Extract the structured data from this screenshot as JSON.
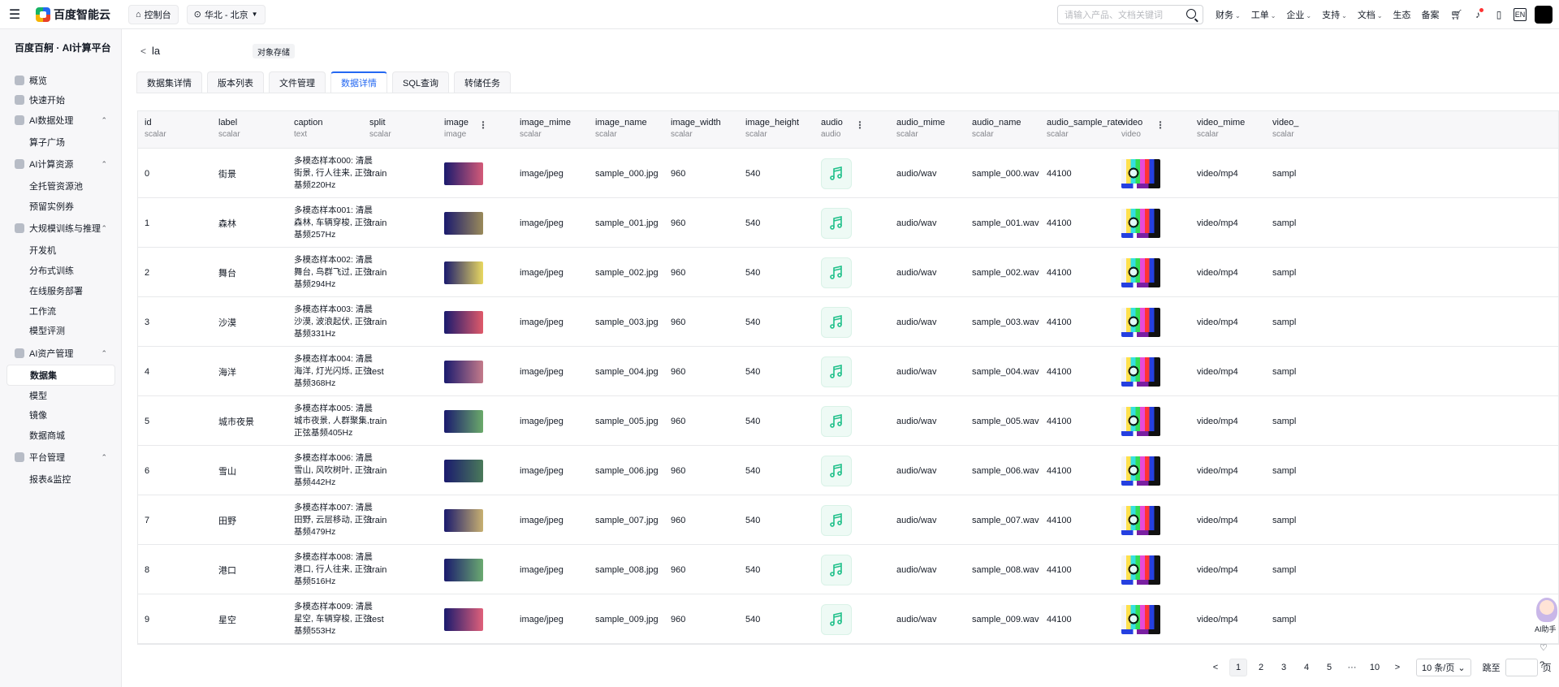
{
  "topbar": {
    "brand": "百度智能云",
    "console": "控制台",
    "region": "华北 - 北京",
    "search_placeholder": "请输入产品、文档关键词",
    "nav": [
      {
        "label": "财务",
        "caret": true
      },
      {
        "label": "工单",
        "caret": true
      },
      {
        "label": "企业",
        "caret": true
      },
      {
        "label": "支持",
        "caret": true
      },
      {
        "label": "文档",
        "caret": true
      },
      {
        "label": "生态",
        "caret": false
      },
      {
        "label": "备案",
        "caret": false
      }
    ],
    "lang": "EN"
  },
  "sidebar": {
    "title": "百度百舸 · AI计算平台",
    "items": [
      {
        "label": "概览",
        "type": "top"
      },
      {
        "label": "快速开始",
        "type": "top"
      },
      {
        "label": "AI数据处理",
        "type": "group"
      },
      {
        "label": "算子广场",
        "type": "sub"
      },
      {
        "label": "AI计算资源",
        "type": "group"
      },
      {
        "label": "全托管资源池",
        "type": "sub"
      },
      {
        "label": "预留实例券",
        "type": "sub"
      },
      {
        "label": "大规模训练与推理",
        "type": "group"
      },
      {
        "label": "开发机",
        "type": "sub"
      },
      {
        "label": "分布式训练",
        "type": "sub"
      },
      {
        "label": "在线服务部署",
        "type": "sub"
      },
      {
        "label": "工作流",
        "type": "sub"
      },
      {
        "label": "模型评测",
        "type": "sub"
      },
      {
        "label": "AI资产管理",
        "type": "group"
      },
      {
        "label": "数据集",
        "type": "sub",
        "active": true
      },
      {
        "label": "模型",
        "type": "sub"
      },
      {
        "label": "镜像",
        "type": "sub"
      },
      {
        "label": "数据商城",
        "type": "sub"
      },
      {
        "label": "平台管理",
        "type": "group"
      },
      {
        "label": "报表&监控",
        "type": "sub"
      }
    ]
  },
  "header": {
    "dataset_name": "la",
    "tag": "对象存储"
  },
  "tabs": [
    {
      "label": "数据集详情"
    },
    {
      "label": "版本列表"
    },
    {
      "label": "文件管理"
    },
    {
      "label": "数据详情",
      "active": true
    },
    {
      "label": "SQL查询"
    },
    {
      "label": "转储任务"
    }
  ],
  "table": {
    "columns": [
      {
        "name": "id",
        "type": "scalar"
      },
      {
        "name": "label",
        "type": "scalar"
      },
      {
        "name": "caption",
        "type": "text"
      },
      {
        "name": "split",
        "type": "scalar"
      },
      {
        "name": "image",
        "type": "image",
        "menu": true
      },
      {
        "name": "image_mime",
        "type": "scalar"
      },
      {
        "name": "image_name",
        "type": "scalar"
      },
      {
        "name": "image_width",
        "type": "scalar"
      },
      {
        "name": "image_height",
        "type": "scalar"
      },
      {
        "name": "audio",
        "type": "audio",
        "menu": true
      },
      {
        "name": "audio_mime",
        "type": "scalar"
      },
      {
        "name": "audio_name",
        "type": "scalar"
      },
      {
        "name": "audio_sample_rate",
        "type": "scalar"
      },
      {
        "name": "video",
        "type": "video",
        "menu": true
      },
      {
        "name": "video_mime",
        "type": "scalar"
      },
      {
        "name": "video_",
        "type": "scalar"
      }
    ],
    "rows": [
      {
        "id": "0",
        "label": "街景",
        "caption": "多模态样本000: 清晨街景, 行人往来, 正弦基频220Hz",
        "split": "train",
        "thumb_colors": [
          "#1a1a6e",
          "#d45a78"
        ],
        "image_mime": "image/jpeg",
        "image_name": "sample_000.jpg",
        "image_width": "960",
        "image_height": "540",
        "audio_mime": "audio/wav",
        "audio_name": "sample_000.wav",
        "audio_sample_rate": "44100",
        "video_mime": "video/mp4",
        "video_": "sampl"
      },
      {
        "id": "1",
        "label": "森林",
        "caption": "多模态样本001: 清晨森林, 车辆穿梭, 正弦基频257Hz",
        "split": "train",
        "thumb_colors": [
          "#1a1a6e",
          "#9a8a5a"
        ],
        "image_mime": "image/jpeg",
        "image_name": "sample_001.jpg",
        "image_width": "960",
        "image_height": "540",
        "audio_mime": "audio/wav",
        "audio_name": "sample_001.wav",
        "audio_sample_rate": "44100",
        "video_mime": "video/mp4",
        "video_": "sampl"
      },
      {
        "id": "2",
        "label": "舞台",
        "caption": "多模态样本002: 清晨舞台, 鸟群飞过, 正弦基频294Hz",
        "split": "train",
        "thumb_colors": [
          "#1a1a6e",
          "#e8d860"
        ],
        "image_mime": "image/jpeg",
        "image_name": "sample_002.jpg",
        "image_width": "960",
        "image_height": "540",
        "audio_mime": "audio/wav",
        "audio_name": "sample_002.wav",
        "audio_sample_rate": "44100",
        "video_mime": "video/mp4",
        "video_": "sampl"
      },
      {
        "id": "3",
        "label": "沙漠",
        "caption": "多模态样本003: 清晨沙漠, 波浪起伏, 正弦基频331Hz",
        "split": "train",
        "thumb_colors": [
          "#1a1a6e",
          "#e05a6a"
        ],
        "image_mime": "image/jpeg",
        "image_name": "sample_003.jpg",
        "image_width": "960",
        "image_height": "540",
        "audio_mime": "audio/wav",
        "audio_name": "sample_003.wav",
        "audio_sample_rate": "44100",
        "video_mime": "video/mp4",
        "video_": "sampl"
      },
      {
        "id": "4",
        "label": "海洋",
        "caption": "多模态样本004: 清晨海洋, 灯光闪烁, 正弦基频368Hz",
        "split": "test",
        "thumb_colors": [
          "#1a1a6e",
          "#c47a8a"
        ],
        "image_mime": "image/jpeg",
        "image_name": "sample_004.jpg",
        "image_width": "960",
        "image_height": "540",
        "audio_mime": "audio/wav",
        "audio_name": "sample_004.wav",
        "audio_sample_rate": "44100",
        "video_mime": "video/mp4",
        "video_": "sampl"
      },
      {
        "id": "5",
        "label": "城市夜景",
        "caption": "多模态样本005: 清晨城市夜景, 人群聚集, 正弦基频405Hz",
        "split": "train",
        "thumb_colors": [
          "#1a1a6e",
          "#6aaa6a"
        ],
        "image_mime": "image/jpeg",
        "image_name": "sample_005.jpg",
        "image_width": "960",
        "image_height": "540",
        "audio_mime": "audio/wav",
        "audio_name": "sample_005.wav",
        "audio_sample_rate": "44100",
        "video_mime": "video/mp4",
        "video_": "sampl"
      },
      {
        "id": "6",
        "label": "雪山",
        "caption": "多模态样本006: 清晨雪山, 风吹树叶, 正弦基频442Hz",
        "split": "train",
        "thumb_colors": [
          "#1a1a6e",
          "#4a7a5a"
        ],
        "image_mime": "image/jpeg",
        "image_name": "sample_006.jpg",
        "image_width": "960",
        "image_height": "540",
        "audio_mime": "audio/wav",
        "audio_name": "sample_006.wav",
        "audio_sample_rate": "44100",
        "video_mime": "video/mp4",
        "video_": "sampl"
      },
      {
        "id": "7",
        "label": "田野",
        "caption": "多模态样本007: 清晨田野, 云层移动, 正弦基频479Hz",
        "split": "train",
        "thumb_colors": [
          "#1a1a6e",
          "#c8b070"
        ],
        "image_mime": "image/jpeg",
        "image_name": "sample_007.jpg",
        "image_width": "960",
        "image_height": "540",
        "audio_mime": "audio/wav",
        "audio_name": "sample_007.wav",
        "audio_sample_rate": "44100",
        "video_mime": "video/mp4",
        "video_": "sampl"
      },
      {
        "id": "8",
        "label": "港口",
        "caption": "多模态样本008: 清晨港口, 行人往来, 正弦基频516Hz",
        "split": "train",
        "thumb_colors": [
          "#1a1a6e",
          "#6aaa70"
        ],
        "image_mime": "image/jpeg",
        "image_name": "sample_008.jpg",
        "image_width": "960",
        "image_height": "540",
        "audio_mime": "audio/wav",
        "audio_name": "sample_008.wav",
        "audio_sample_rate": "44100",
        "video_mime": "video/mp4",
        "video_": "sampl"
      },
      {
        "id": "9",
        "label": "星空",
        "caption": "多模态样本009: 清晨星空, 车辆穿梭, 正弦基频553Hz",
        "split": "test",
        "thumb_colors": [
          "#1a1a6e",
          "#e0607a"
        ],
        "image_mime": "image/jpeg",
        "image_name": "sample_009.jpg",
        "image_width": "960",
        "image_height": "540",
        "audio_mime": "audio/wav",
        "audio_name": "sample_009.wav",
        "audio_sample_rate": "44100",
        "video_mime": "video/mp4",
        "video_": "sampl"
      }
    ]
  },
  "pagination": {
    "prev": "<",
    "pages": [
      "1",
      "2",
      "3",
      "4",
      "5"
    ],
    "active_page": "1",
    "ellipsis": "···",
    "last": "10",
    "next": ">",
    "page_size": "10 条/页",
    "jump_label": "跳至",
    "page_unit": "页"
  },
  "assistant": {
    "label": "AI助手"
  },
  "colors": {
    "accent": "#2468f2",
    "audio_icon": "#20c08a"
  }
}
